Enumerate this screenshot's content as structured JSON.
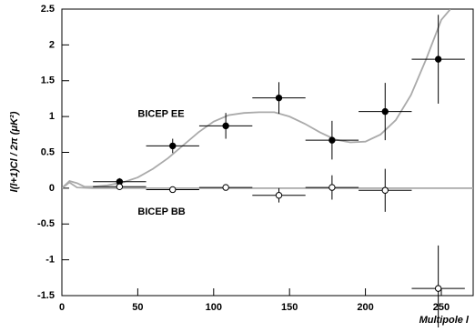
{
  "chart_data": {
    "type": "scatter",
    "xlabel": "Multipole l",
    "ylabel": "l(l+1)Cl / 2π  (μK²)",
    "xlim": [
      0,
      271
    ],
    "ylim": [
      -1.5,
      2.5
    ],
    "xticks": [
      0,
      50,
      100,
      150,
      200,
      250
    ],
    "yticks": [
      -1.5,
      -1,
      -0.5,
      0,
      0.5,
      1,
      1.5,
      2,
      2.5
    ],
    "series": [
      {
        "name": "BICEP EE",
        "color": "#000000",
        "marker": "filled",
        "x": [
          38,
          73,
          108,
          143,
          178,
          213,
          248
        ],
        "values": [
          0.09,
          0.59,
          0.87,
          1.26,
          0.67,
          1.07,
          1.8
        ],
        "yerr": [
          0.05,
          0.1,
          0.18,
          0.22,
          0.27,
          0.4,
          0.62
        ],
        "xerr": [
          17.5,
          17.5,
          17.5,
          17.5,
          17.5,
          17.5,
          17.5
        ],
        "label_x": 50,
        "label_y": 1.03
      },
      {
        "name": "BICEP BB",
        "color": "#000000",
        "marker": "open",
        "x": [
          38,
          73,
          108,
          143,
          178,
          213,
          248
        ],
        "values": [
          0.02,
          -0.02,
          0.01,
          -0.1,
          0.01,
          -0.03,
          -1.4
        ],
        "yerr": [
          0.03,
          0.03,
          0.03,
          0.1,
          0.17,
          0.3,
          0.6
        ],
        "xerr": [
          17.5,
          17.5,
          17.5,
          17.5,
          17.5,
          17.5,
          17.5
        ],
        "label_x": 50,
        "label_y": -0.33
      }
    ],
    "curves": [
      {
        "color": "#aaaaaa",
        "x": [
          0,
          5,
          10,
          15,
          20,
          30,
          40,
          50,
          60,
          70,
          80,
          90,
          100,
          110,
          120,
          130,
          140,
          150,
          160,
          170,
          180,
          190,
          200,
          210,
          220,
          230,
          240,
          250,
          256
        ],
        "values": [
          0,
          0.1,
          0.07,
          0.02,
          0.02,
          0.04,
          0.08,
          0.15,
          0.27,
          0.42,
          0.6,
          0.78,
          0.93,
          1.02,
          1.05,
          1.06,
          1.06,
          1.0,
          0.9,
          0.78,
          0.68,
          0.64,
          0.65,
          0.75,
          0.95,
          1.3,
          1.8,
          2.35,
          2.5
        ]
      },
      {
        "color": "#aaaaaa",
        "x": [
          0,
          5,
          10,
          20,
          271
        ],
        "values": [
          0,
          0.08,
          0.01,
          0,
          0
        ]
      }
    ]
  }
}
